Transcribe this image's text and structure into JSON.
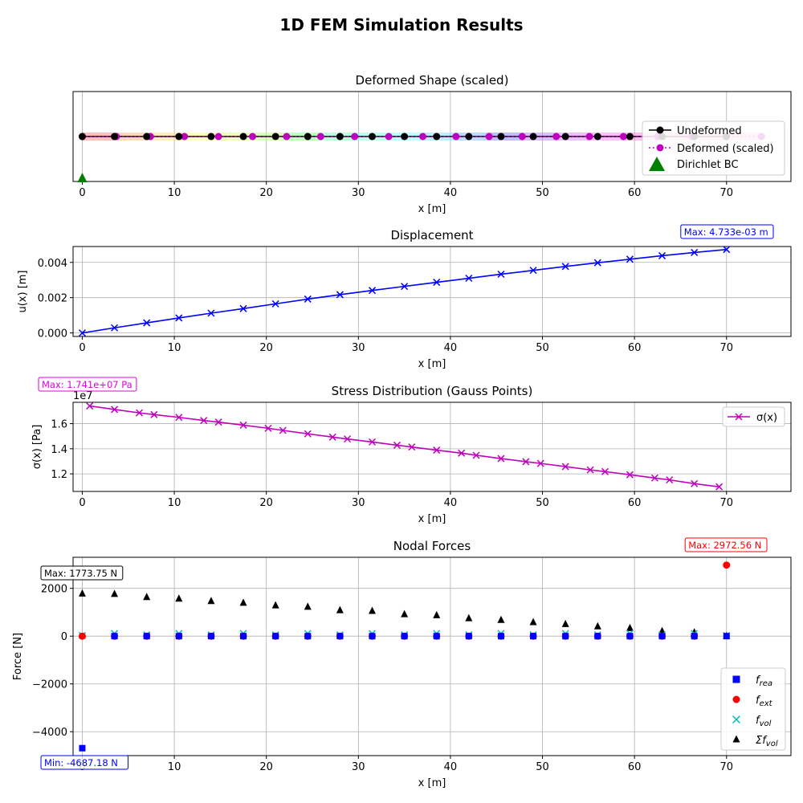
{
  "figure_title": "1D FEM Simulation Results",
  "colors": {
    "undeformed": "#000000",
    "deformed": "#bf00bf",
    "bc": "#008000",
    "displacement": "#0000ff",
    "stress": "#bf00bf",
    "f_rea": "#0000ff",
    "f_ext": "#ff0000",
    "f_vol": "#00bfbf",
    "sum_f_vol": "#000000",
    "grid": "#b0b0b0",
    "element_bands": [
      "#ff8080",
      "#ffb380",
      "#ffd980",
      "#ffff80",
      "#d9ff80",
      "#b3ff80",
      "#80ff80",
      "#80ffb3",
      "#80ffd9",
      "#80ffff",
      "#80d9ff",
      "#80b3ff",
      "#8080ff",
      "#b380ff",
      "#d980ff",
      "#ff80ff",
      "#ff80d9",
      "#ff80b3",
      "#ff8099",
      "#ff80c0"
    ]
  },
  "chart_data": [
    {
      "type": "line",
      "title": "Deformed Shape (scaled)",
      "xlabel": "x [m]",
      "ylabel": "",
      "xlim": [
        -1,
        77
      ],
      "ylim": [
        -1,
        1
      ],
      "xticks": [
        0,
        10,
        20,
        30,
        40,
        50,
        60,
        70
      ],
      "yticks": [],
      "grid": true,
      "legend": "lower-right",
      "legend_entries": [
        "Undeformed",
        "Deformed (scaled)",
        "Dirichlet BC"
      ],
      "series": [
        {
          "name": "Undeformed",
          "x": [
            0,
            3.5,
            7,
            10.5,
            14,
            17.5,
            21,
            24.5,
            28,
            31.5,
            35,
            38.5,
            42,
            45.5,
            49,
            52.5,
            56,
            59.5,
            63,
            66.5,
            70
          ],
          "y": [
            0,
            0,
            0,
            0,
            0,
            0,
            0,
            0,
            0,
            0,
            0,
            0,
            0,
            0,
            0,
            0,
            0,
            0,
            0,
            0,
            0
          ]
        },
        {
          "name": "Deformed (scaled)",
          "x": [
            0,
            3.7,
            7.4,
            11.1,
            14.8,
            18.5,
            22.2,
            25.9,
            29.6,
            33.3,
            37.0,
            40.6,
            44.2,
            47.8,
            51.5,
            55.1,
            58.8,
            62.5,
            66.2,
            69.9,
            73.8
          ],
          "y": [
            0,
            0,
            0,
            0,
            0,
            0,
            0,
            0,
            0,
            0,
            0,
            0,
            0,
            0,
            0,
            0,
            0,
            0,
            0,
            0,
            0
          ]
        },
        {
          "name": "Dirichlet BC",
          "x": [
            0
          ],
          "y": [
            -1
          ]
        }
      ]
    },
    {
      "type": "line",
      "title": "Displacement",
      "xlabel": "x [m]",
      "ylabel": "u(x) [m]",
      "xlim": [
        -1,
        77
      ],
      "ylim": [
        -0.0002,
        0.0049
      ],
      "xticks": [
        0,
        10,
        20,
        30,
        40,
        50,
        60,
        70
      ],
      "yticks": [
        0.0,
        0.002,
        0.004
      ],
      "ytick_labels": [
        "0.000",
        "0.002",
        "0.004"
      ],
      "grid": true,
      "annotation": "Max: 4.733e-03 m",
      "x": [
        0,
        3.5,
        7,
        10.5,
        14,
        17.5,
        21,
        24.5,
        28,
        31.5,
        35,
        38.5,
        42,
        45.5,
        49,
        52.5,
        56,
        59.5,
        63,
        66.5,
        70
      ],
      "values": [
        0.0,
        0.00029,
        0.00057,
        0.00085,
        0.00112,
        0.00138,
        0.00165,
        0.00192,
        0.00217,
        0.00241,
        0.00264,
        0.00287,
        0.0031,
        0.00333,
        0.00355,
        0.00377,
        0.00398,
        0.00418,
        0.00438,
        0.00456,
        0.004733
      ]
    },
    {
      "type": "line",
      "title": "Stress Distribution (Gauss Points)",
      "xlabel": "x [m]",
      "ylabel": "σ(x) [Pa]",
      "offset_label": "1e7",
      "xlim": [
        -1,
        77
      ],
      "ylim": [
        1.06,
        1.77
      ],
      "xticks": [
        0,
        10,
        20,
        30,
        40,
        50,
        60,
        70
      ],
      "yticks": [
        1.2,
        1.4,
        1.6
      ],
      "ytick_labels": [
        "1.2",
        "1.4",
        "1.6"
      ],
      "grid": true,
      "legend": "top-right",
      "legend_entries": [
        "σ(x)"
      ],
      "annotation": "Max: 1.741e+07 Pa",
      "x": [
        0.8,
        3.5,
        6.2,
        7.8,
        10.5,
        13.2,
        14.8,
        17.5,
        20.2,
        21.8,
        24.5,
        27.2,
        28.8,
        31.5,
        34.2,
        35.8,
        38.5,
        41.2,
        42.8,
        45.5,
        48.2,
        49.8,
        52.5,
        55.2,
        56.8,
        59.5,
        62.2,
        63.8,
        66.5,
        69.2
      ],
      "values": [
        1.741,
        1.713,
        1.686,
        1.672,
        1.65,
        1.625,
        1.612,
        1.588,
        1.563,
        1.546,
        1.519,
        1.493,
        1.478,
        1.454,
        1.428,
        1.414,
        1.389,
        1.365,
        1.348,
        1.322,
        1.297,
        1.283,
        1.258,
        1.232,
        1.218,
        1.193,
        1.167,
        1.152,
        1.122,
        1.097
      ]
    },
    {
      "type": "scatter",
      "title": "Nodal Forces",
      "xlabel": "x [m]",
      "ylabel": "Force [N]",
      "xlim": [
        -1,
        77
      ],
      "ylim": [
        -5000,
        3300
      ],
      "xticks": [
        0,
        10,
        20,
        30,
        40,
        50,
        60,
        70
      ],
      "yticks": [
        -4000,
        -2000,
        0,
        2000
      ],
      "ytick_labels": [
        "−4000",
        "−2000",
        "0",
        "2000"
      ],
      "grid": true,
      "legend": "lower-right",
      "legend_entries": [
        "f_rea",
        "f_ext",
        "f_vol",
        "Σf_vol"
      ],
      "annotations": {
        "max_sum": "Max: 1773.75 N",
        "max_ext": "Max: 2972.56 N",
        "min_rea": "Min: -4687.18 N"
      },
      "x": [
        0,
        3.5,
        7,
        10.5,
        14,
        17.5,
        21,
        24.5,
        28,
        31.5,
        35,
        38.5,
        42,
        45.5,
        49,
        52.5,
        56,
        59.5,
        63,
        66.5,
        70
      ],
      "series": [
        {
          "name": "f_rea",
          "values": [
            -4687.18,
            0,
            0,
            0,
            0,
            0,
            0,
            0,
            0,
            0,
            0,
            0,
            0,
            0,
            0,
            0,
            0,
            0,
            0,
            0,
            0
          ]
        },
        {
          "name": "f_ext",
          "values": [
            0,
            0,
            0,
            0,
            0,
            0,
            0,
            0,
            0,
            0,
            0,
            0,
            0,
            0,
            0,
            0,
            0,
            0,
            0,
            0,
            2972.56
          ]
        },
        {
          "name": "f_vol",
          "values": [
            25,
            110,
            55,
            110,
            55,
            110,
            55,
            110,
            55,
            110,
            55,
            110,
            55,
            110,
            55,
            110,
            55,
            110,
            55,
            110,
            25
          ]
        },
        {
          "name": "Σf_vol",
          "values": [
            1773.75,
            1760,
            1630,
            1560,
            1460,
            1390,
            1280,
            1220,
            1080,
            1050,
            910,
            870,
            740,
            670,
            580,
            500,
            400,
            330,
            200,
            150,
            0
          ]
        }
      ]
    }
  ]
}
